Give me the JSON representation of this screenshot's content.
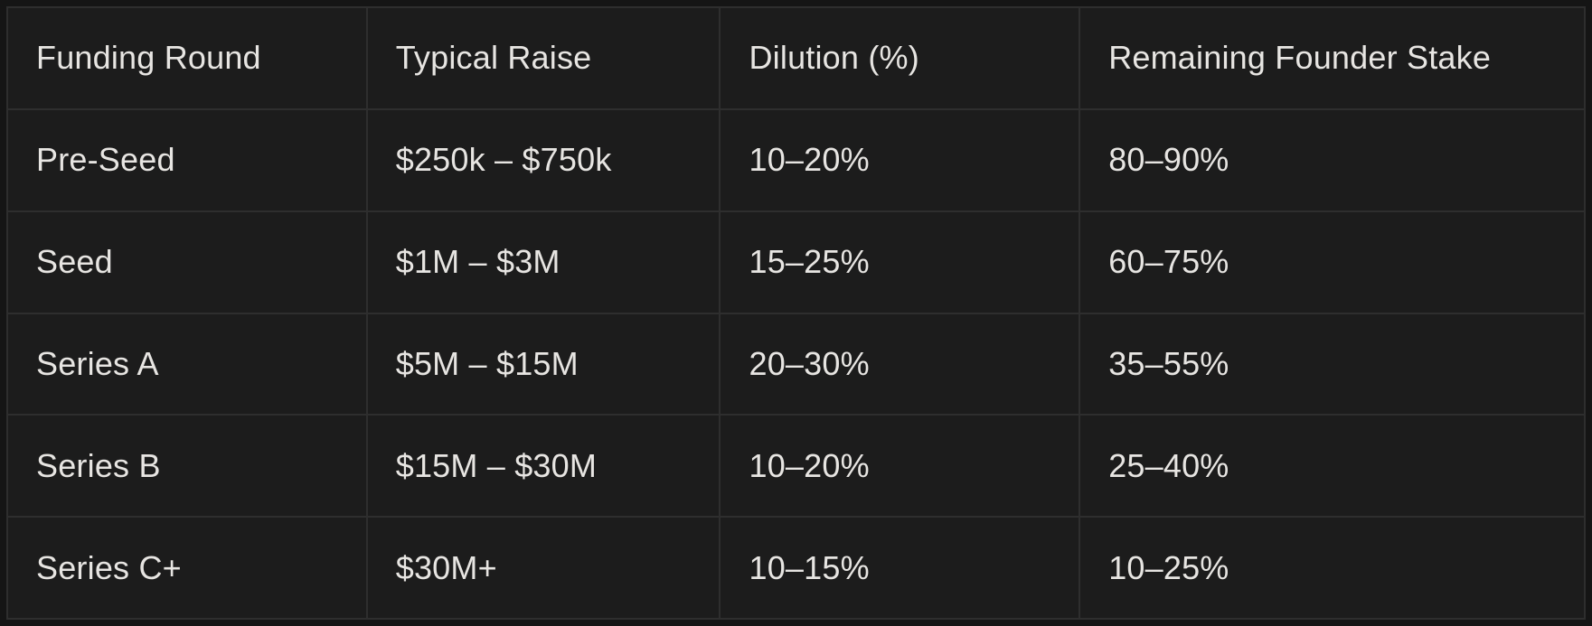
{
  "colors": {
    "page_bg": "#151515",
    "cell_bg": "#1c1c1c",
    "border": "#2e2e2e",
    "text": "#e7e5e2"
  },
  "table": {
    "columns": [
      "Funding Round",
      "Typical Raise",
      "Dilution (%)",
      "Remaining Founder Stake"
    ],
    "rows": [
      {
        "cells": [
          "Pre-Seed",
          "$250k – $750k",
          "10–20%",
          "80–90%"
        ]
      },
      {
        "cells": [
          "Seed",
          "$1M – $3M",
          "15–25%",
          "60–75%"
        ]
      },
      {
        "cells": [
          "Series A",
          "$5M – $15M",
          "20–30%",
          "35–55%"
        ]
      },
      {
        "cells": [
          "Series B",
          "$15M – $30M",
          "10–20%",
          "25–40%"
        ]
      },
      {
        "cells": [
          "Series C+",
          "$30M+",
          "10–15%",
          "10–25%"
        ]
      }
    ]
  },
  "chart_data": {
    "type": "table",
    "title": "",
    "columns": [
      "Funding Round",
      "Typical Raise",
      "Dilution (%)",
      "Remaining Founder Stake"
    ],
    "rows": [
      [
        "Pre-Seed",
        "$250k – $750k",
        "10–20%",
        "80–90%"
      ],
      [
        "Seed",
        "$1M – $3M",
        "15–25%",
        "60–75%"
      ],
      [
        "Series A",
        "$5M – $15M",
        "20–30%",
        "35–55%"
      ],
      [
        "Series B",
        "$15M – $30M",
        "10–20%",
        "25–40%"
      ],
      [
        "Series C+",
        "$30M+",
        "10–15%",
        "10–25%"
      ]
    ]
  }
}
